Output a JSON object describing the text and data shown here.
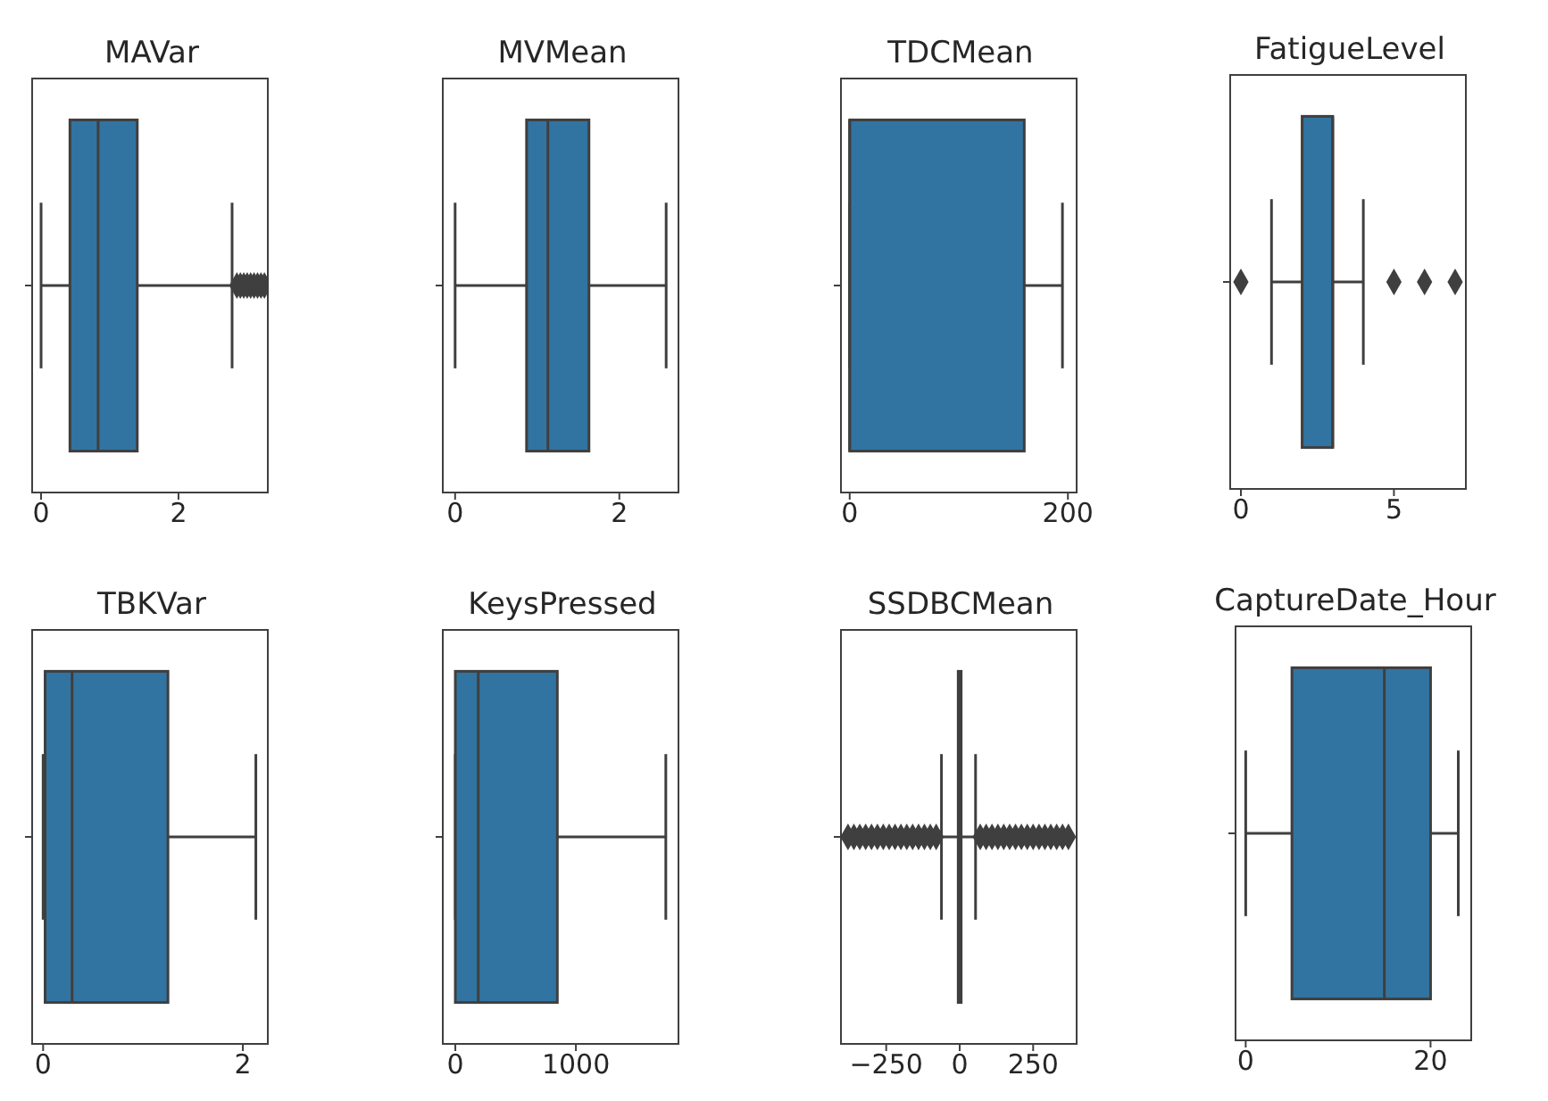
{
  "chart_data": [
    {
      "type": "box",
      "title": "MAVar",
      "orientation": "horizontal",
      "categories": [
        null
      ],
      "color": "#3274a1",
      "xlim": [
        -0.13,
        3.3
      ],
      "xticks": [
        0,
        2
      ],
      "tick_labels": "x",
      "boxes": [
        {
          "low": 0,
          "q1": 0.42,
          "median": 0.83,
          "q3": 1.4,
          "high": 2.78,
          "outliers": [
            2.85,
            2.9,
            2.95,
            3.0,
            3.05,
            3.1,
            3.15,
            3.2,
            3.25
          ]
        }
      ]
    },
    {
      "type": "box",
      "title": "MVMean",
      "orientation": "horizontal",
      "categories": [
        null
      ],
      "color": "#3274a1",
      "xlim": [
        -0.15,
        2.72
      ],
      "xticks": [
        0,
        2
      ],
      "tick_labels": "x",
      "boxes": [
        {
          "low": 0,
          "q1": 0.87,
          "median": 1.13,
          "q3": 1.63,
          "high": 2.57
        }
      ]
    },
    {
      "type": "box",
      "title": "TDCMean",
      "orientation": "horizontal",
      "categories": [
        null
      ],
      "color": "#3274a1",
      "xlim": [
        -8,
        208
      ],
      "xticks": [
        0,
        200
      ],
      "tick_labels": "x",
      "boxes": [
        {
          "low": 0,
          "q1": 0,
          "median": 0,
          "q3": 160,
          "high": 195
        }
      ]
    },
    {
      "type": "box",
      "title": "FatigueLevel",
      "orientation": "horizontal",
      "categories": [
        null
      ],
      "color": "#3274a1",
      "xlim": [
        -0.35,
        7.35
      ],
      "xticks": [
        0,
        5
      ],
      "tick_labels": "x",
      "boxes": [
        {
          "low": 1,
          "q1": 2,
          "median": 3,
          "q3": 3,
          "high": 4,
          "outliers": [
            0,
            5,
            6,
            7
          ]
        }
      ]
    },
    {
      "type": "box",
      "title": "TBKVar",
      "orientation": "horizontal",
      "categories": [
        null
      ],
      "color": "#3274a1",
      "xlim": [
        -0.11,
        2.25
      ],
      "xticks": [
        0,
        2
      ],
      "tick_labels": "x",
      "boxes": [
        {
          "low": 0,
          "q1": 0.02,
          "median": 0.29,
          "q3": 1.25,
          "high": 2.13
        }
      ]
    },
    {
      "type": "box",
      "title": "KeysPressed",
      "orientation": "horizontal",
      "categories": [
        null
      ],
      "color": "#3274a1",
      "xlim": [
        -104,
        1851
      ],
      "xticks": [
        0,
        1000
      ],
      "tick_labels": "x",
      "boxes": [
        {
          "low": 0,
          "q1": 0,
          "median": 190,
          "q3": 846,
          "high": 1746
        }
      ]
    },
    {
      "type": "box",
      "title": "SSDBCMean",
      "orientation": "horizontal",
      "categories": [
        null
      ],
      "color": "#3274a1",
      "xlim": [
        -404,
        398
      ],
      "xticks": [
        {
          "value": -250,
          "label": "−250"
        },
        0,
        250
      ],
      "tick_labels": "x",
      "boxes": [
        {
          "low": -62,
          "q1": -5,
          "median": 0,
          "q3": 5,
          "high": 54,
          "outliers": [
            -380,
            -360,
            -340,
            -320,
            -300,
            -280,
            -260,
            -240,
            -220,
            -200,
            -180,
            -160,
            -140,
            -120,
            -100,
            -80,
            70,
            90,
            110,
            130,
            150,
            170,
            190,
            210,
            230,
            250,
            270,
            290,
            310,
            330,
            350,
            370
          ]
        }
      ]
    },
    {
      "type": "box",
      "title": "CaptureDate_Hour",
      "orientation": "horizontal",
      "categories": [
        null
      ],
      "color": "#3274a1",
      "xlim": [
        -1.1,
        24.4
      ],
      "xticks": [
        0,
        20
      ],
      "tick_labels": "x",
      "boxes": [
        {
          "low": 0,
          "q1": 5,
          "median": 15,
          "q3": 20,
          "high": 23
        }
      ]
    }
  ]
}
